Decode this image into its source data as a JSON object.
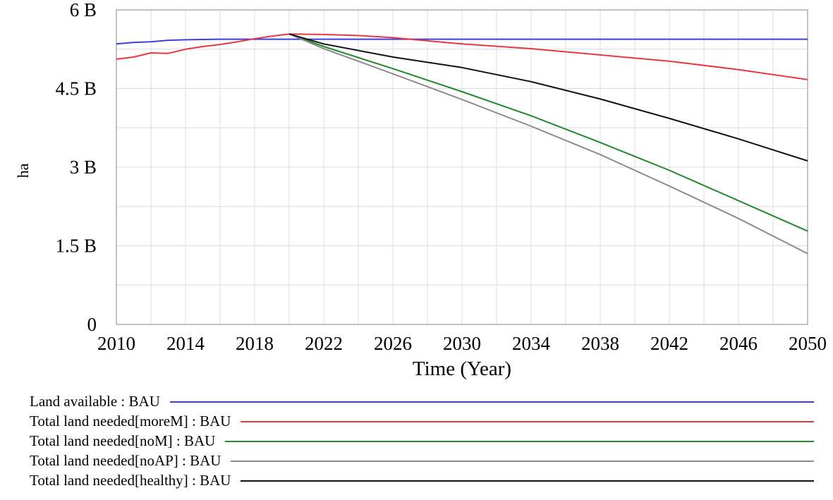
{
  "chart_data": {
    "type": "line",
    "xlabel": "Time (Year)",
    "ylabel": "ha",
    "xlim": [
      2010,
      2050
    ],
    "ylim": [
      0,
      6
    ],
    "x_ticks": [
      "2010",
      "2014",
      "2018",
      "2022",
      "2026",
      "2030",
      "2034",
      "2038",
      "2042",
      "2046",
      "2050"
    ],
    "y_ticks": [
      {
        "value": 0,
        "label": "0"
      },
      {
        "value": 1.5,
        "label": "1.5 B"
      },
      {
        "value": 3,
        "label": "3 B"
      },
      {
        "value": 4.5,
        "label": "4.5 B"
      },
      {
        "value": 6,
        "label": "6 B"
      }
    ],
    "grid": true,
    "legend_position": "bottom",
    "series": [
      {
        "name": "Land available : BAU",
        "color": "#3a3df0",
        "x": [
          2010,
          2011,
          2012,
          2013,
          2014,
          2016,
          2018,
          2020,
          2030,
          2040,
          2050
        ],
        "y": [
          5.35,
          5.38,
          5.39,
          5.42,
          5.43,
          5.44,
          5.44,
          5.44,
          5.44,
          5.44,
          5.44
        ]
      },
      {
        "name": "Total land needed[moreM] : BAU",
        "color": "#e8383f",
        "x": [
          2010,
          2011,
          2012,
          2013,
          2014,
          2015,
          2016,
          2017,
          2018,
          2019,
          2020,
          2022,
          2024,
          2026,
          2028,
          2030,
          2034,
          2038,
          2042,
          2046,
          2050
        ],
        "y": [
          5.06,
          5.1,
          5.18,
          5.17,
          5.25,
          5.3,
          5.34,
          5.39,
          5.45,
          5.5,
          5.54,
          5.53,
          5.51,
          5.47,
          5.41,
          5.35,
          5.26,
          5.14,
          5.02,
          4.86,
          4.67
        ]
      },
      {
        "name": "Total land needed[noM] : BAU",
        "color": "#1f8a2a",
        "x": [
          2020,
          2022,
          2026,
          2030,
          2034,
          2038,
          2042,
          2046,
          2050
        ],
        "y": [
          5.54,
          5.3,
          4.88,
          4.44,
          3.98,
          3.47,
          2.94,
          2.36,
          1.78
        ]
      },
      {
        "name": "Total land needed[noAP] : BAU",
        "color": "#8c8c8c",
        "x": [
          2020,
          2022,
          2026,
          2030,
          2034,
          2038,
          2042,
          2046,
          2050
        ],
        "y": [
          5.54,
          5.26,
          4.78,
          4.29,
          3.78,
          3.24,
          2.64,
          2.02,
          1.35
        ]
      },
      {
        "name": "Total land needed[healthy] : BAU",
        "color": "#111111",
        "x": [
          2020,
          2022,
          2026,
          2030,
          2034,
          2038,
          2042,
          2046,
          2050
        ],
        "y": [
          5.54,
          5.35,
          5.1,
          4.9,
          4.63,
          4.3,
          3.93,
          3.54,
          3.12
        ]
      }
    ]
  }
}
